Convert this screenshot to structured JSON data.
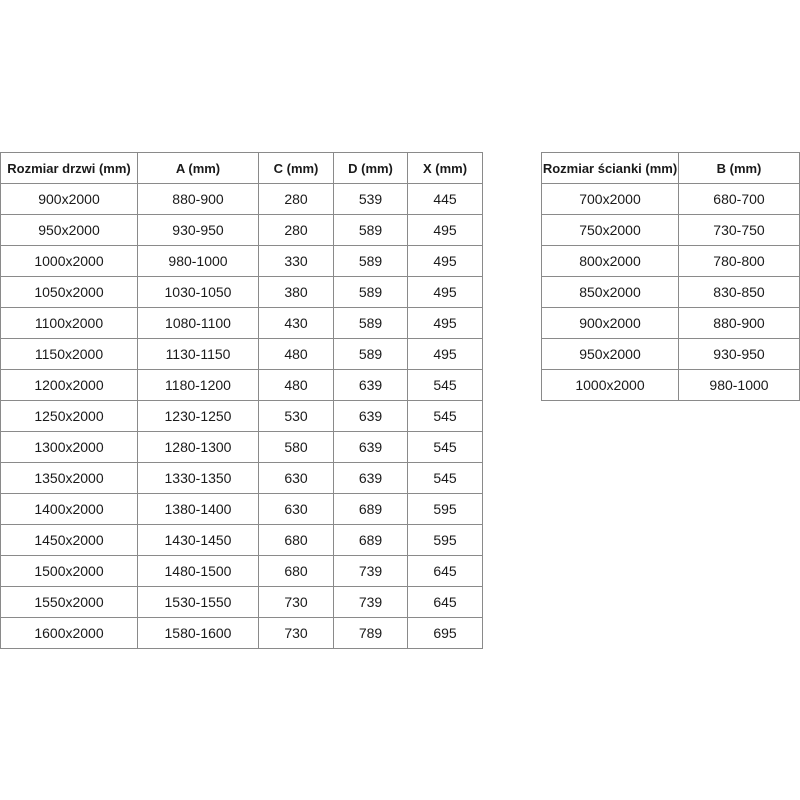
{
  "doors_table": {
    "headers": [
      "Rozmiar drzwi (mm)",
      "A (mm)",
      "C (mm)",
      "D (mm)",
      "X (mm)"
    ],
    "rows": [
      [
        "900x2000",
        "880-900",
        "280",
        "539",
        "445"
      ],
      [
        "950x2000",
        "930-950",
        "280",
        "589",
        "495"
      ],
      [
        "1000x2000",
        "980-1000",
        "330",
        "589",
        "495"
      ],
      [
        "1050x2000",
        "1030-1050",
        "380",
        "589",
        "495"
      ],
      [
        "1100x2000",
        "1080-1100",
        "430",
        "589",
        "495"
      ],
      [
        "1150x2000",
        "1130-1150",
        "480",
        "589",
        "495"
      ],
      [
        "1200x2000",
        "1180-1200",
        "480",
        "639",
        "545"
      ],
      [
        "1250x2000",
        "1230-1250",
        "530",
        "639",
        "545"
      ],
      [
        "1300x2000",
        "1280-1300",
        "580",
        "639",
        "545"
      ],
      [
        "1350x2000",
        "1330-1350",
        "630",
        "639",
        "545"
      ],
      [
        "1400x2000",
        "1380-1400",
        "630",
        "689",
        "595"
      ],
      [
        "1450x2000",
        "1430-1450",
        "680",
        "689",
        "595"
      ],
      [
        "1500x2000",
        "1480-1500",
        "680",
        "739",
        "645"
      ],
      [
        "1550x2000",
        "1530-1550",
        "730",
        "739",
        "645"
      ],
      [
        "1600x2000",
        "1580-1600",
        "730",
        "789",
        "695"
      ]
    ]
  },
  "walls_table": {
    "headers": [
      "Rozmiar ścianki (mm)",
      "B (mm)"
    ],
    "rows": [
      [
        "700x2000",
        "680-700"
      ],
      [
        "750x2000",
        "730-750"
      ],
      [
        "800x2000",
        "780-800"
      ],
      [
        "850x2000",
        "830-850"
      ],
      [
        "900x2000",
        "880-900"
      ],
      [
        "950x2000",
        "930-950"
      ],
      [
        "1000x2000",
        "980-1000"
      ]
    ]
  }
}
